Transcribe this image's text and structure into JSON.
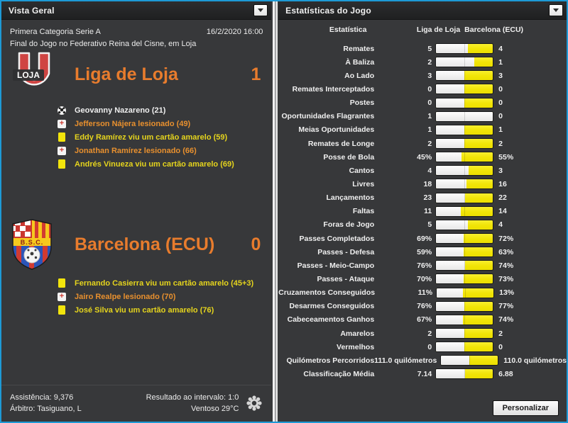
{
  "left_panel": {
    "title": "Vista Geral",
    "competition": "Primera Categoria Serie A",
    "datetime": "16/2/2020 16:00",
    "venue_line": "Final do Jogo no Federativo Reina del Cisne, em Loja",
    "home": {
      "name": "Liga de Loja",
      "score": "1",
      "logo_text": "LOJA",
      "events": [
        {
          "icon": "goal-icon",
          "type": "goal",
          "text": "Geovanny Nazareno (21)"
        },
        {
          "icon": "injury-icon",
          "type": "injury",
          "text": "Jefferson Nájera lesionado (49)"
        },
        {
          "icon": "yellow-card-icon",
          "type": "yellow",
          "text": "Eddy Ramírez viu um cartão amarelo (59)"
        },
        {
          "icon": "injury-icon",
          "type": "injury",
          "text": "Jonathan Ramírez lesionado (66)"
        },
        {
          "icon": "yellow-card-icon",
          "type": "yellow",
          "text": "Andrés Vinueza viu um cartão amarelo (69)"
        }
      ]
    },
    "away": {
      "name": "Barcelona (ECU)",
      "score": "0",
      "logo_text": "B.S.C.",
      "events": [
        {
          "icon": "yellow-card-icon",
          "type": "yellow",
          "text": "Fernando Casierra viu um cartão amarelo (45+3)"
        },
        {
          "icon": "injury-icon",
          "type": "injury",
          "text": "Jairo Realpe lesionado (70)"
        },
        {
          "icon": "yellow-card-icon",
          "type": "yellow",
          "text": "José Silva viu um cartão amarelo (76)"
        }
      ]
    },
    "footer": {
      "attendance": "Assistência: 9,376",
      "referee": "Árbitro: Tasiguano, L",
      "half_time": "Resultado ao intervalo: 1:0",
      "weather": "Ventoso 29°C"
    }
  },
  "right_panel": {
    "title": "Estatísticas do Jogo",
    "columns": {
      "stat": "Estatística",
      "home": "Liga de Loja",
      "away": "Barcelona (ECU)"
    },
    "personalize_label": "Personalizar",
    "stats": [
      {
        "label": "Remates",
        "home": "5",
        "away": "4"
      },
      {
        "label": "À Baliza",
        "home": "2",
        "away": "1"
      },
      {
        "label": "Ao Lado",
        "home": "3",
        "away": "3"
      },
      {
        "label": "Remates Interceptados",
        "home": "0",
        "away": "0"
      },
      {
        "label": "Postes",
        "home": "0",
        "away": "0"
      },
      {
        "label": "Oportunidades Flagrantes",
        "home": "1",
        "away": "0"
      },
      {
        "label": "Meias Oportunidades",
        "home": "1",
        "away": "1"
      },
      {
        "label": "Remates de Longe",
        "home": "2",
        "away": "2"
      },
      {
        "label": "Posse de Bola",
        "home": "45%",
        "away": "55%"
      },
      {
        "label": "Cantos",
        "home": "4",
        "away": "3"
      },
      {
        "label": "Livres",
        "home": "18",
        "away": "16"
      },
      {
        "label": "Lançamentos",
        "home": "23",
        "away": "22"
      },
      {
        "label": "Faltas",
        "home": "11",
        "away": "14"
      },
      {
        "label": "Foras de Jogo",
        "home": "5",
        "away": "4"
      },
      {
        "label": "Passes Completados",
        "home": "69%",
        "away": "72%"
      },
      {
        "label": "Passes - Defesa",
        "home": "59%",
        "away": "63%"
      },
      {
        "label": "Passes - Meio-Campo",
        "home": "76%",
        "away": "74%"
      },
      {
        "label": "Passes - Ataque",
        "home": "70%",
        "away": "73%"
      },
      {
        "label": "Cruzamentos Conseguidos",
        "home": "11%",
        "away": "13%"
      },
      {
        "label": "Desarmes Conseguidos",
        "home": "76%",
        "away": "77%"
      },
      {
        "label": "Cabeceamentos Ganhos",
        "home": "67%",
        "away": "74%"
      },
      {
        "label": "Amarelos",
        "home": "2",
        "away": "2"
      },
      {
        "label": "Vermelhos",
        "home": "0",
        "away": "0"
      },
      {
        "label": "Quilómetros Percorridos",
        "home": "111.0 quilómetros",
        "away": "110.0 quilómetros"
      },
      {
        "label": "Classificação Média",
        "home": "7.14",
        "away": "6.88"
      }
    ]
  },
  "colors": {
    "accent_orange": "#e87c2d",
    "card_yellow": "#f2e40c",
    "bar_yellow": "#f1e406",
    "frame_blue": "#1d9ad6",
    "background": "#37383a"
  }
}
